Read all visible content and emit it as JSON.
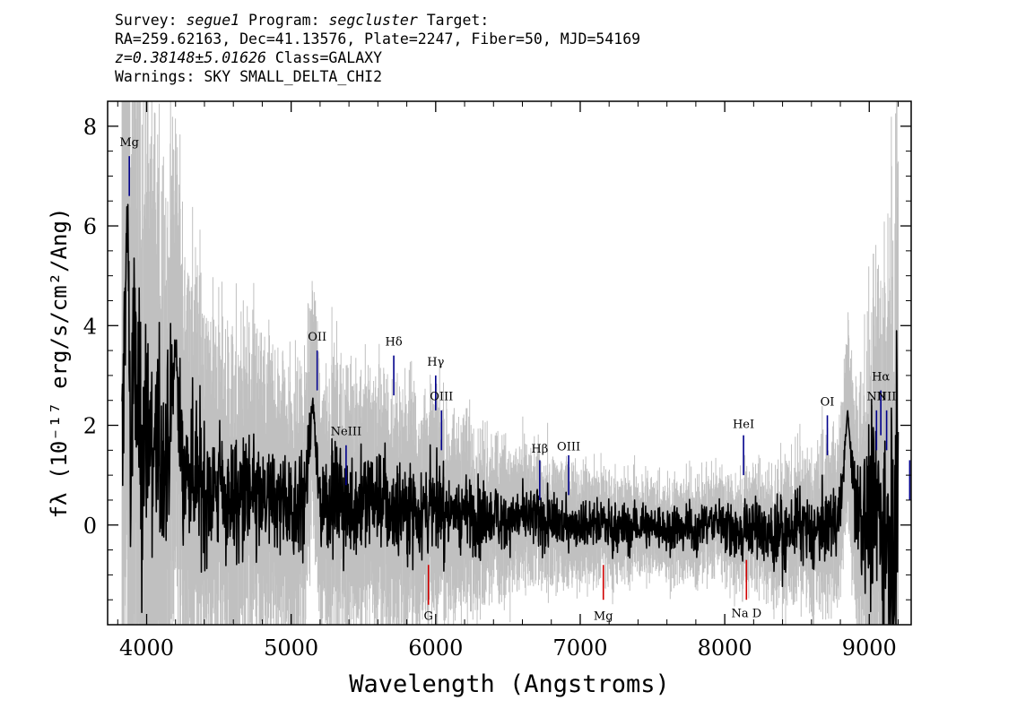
{
  "header": {
    "survey_label": "Survey:",
    "survey": "segue1",
    "program_label": "Program:",
    "program": "segcluster",
    "target_label": "Target:",
    "line2": "RA=259.62163, Dec=41.13576, Plate=2247, Fiber=50, MJD=54169",
    "redshift": "z=0.38148±5.01626",
    "class_text": "Class=GALAXY",
    "warnings": "Warnings: SKY SMALL_DELTA_CHI2"
  },
  "chart_data": {
    "type": "line",
    "xlabel": "Wavelength (Angstroms)",
    "ylabel": "fλ (10⁻¹⁷ erg/s/cm²/Ang)",
    "xlim": [
      3730,
      9290
    ],
    "ylim": [
      -2.0,
      8.5
    ],
    "x_ticks": [
      4000,
      5000,
      6000,
      7000,
      8000,
      9000
    ],
    "y_ticks": [
      0,
      2,
      4,
      6,
      8
    ],
    "grid": false,
    "legend": "none",
    "series": [
      {
        "role": "flux",
        "color": "#000000",
        "x": [
          3830,
          3850,
          3870,
          3890,
          3910,
          3930,
          3960,
          4000,
          4050,
          4100,
          4150,
          4200,
          4250,
          4300,
          4400,
          4500,
          4600,
          4700,
          4800,
          4900,
          5000,
          5100,
          5150,
          5200,
          5300,
          5400,
          5500,
          5600,
          5700,
          5800,
          5900,
          6000,
          6100,
          6200,
          6300,
          6400,
          6500,
          6600,
          6700,
          6800,
          6900,
          7000,
          7100,
          7200,
          7300,
          7400,
          7500,
          7600,
          7700,
          7800,
          7900,
          8000,
          8100,
          8200,
          8300,
          8400,
          8500,
          8600,
          8700,
          8800,
          8850,
          8900,
          9000,
          9050,
          9100,
          9150,
          9200
        ],
        "y": [
          0.5,
          4.5,
          6.3,
          1.0,
          3.5,
          2.5,
          1.5,
          2.0,
          1.6,
          1.2,
          1.4,
          3.6,
          1.0,
          1.2,
          0.8,
          0.7,
          0.5,
          0.6,
          0.4,
          0.5,
          0.4,
          0.5,
          2.5,
          0.4,
          0.6,
          0.3,
          0.5,
          0.6,
          0.3,
          0.4,
          0.3,
          0.4,
          0.2,
          0.3,
          0.1,
          0.2,
          0.1,
          0.2,
          0.1,
          0.0,
          0.1,
          0.0,
          0.1,
          0.0,
          -0.1,
          0.0,
          0.0,
          -0.1,
          0.0,
          -0.1,
          0.1,
          0.0,
          -0.2,
          0.0,
          -0.3,
          -0.2,
          0.0,
          -0.2,
          0.0,
          0.2,
          2.3,
          0.3,
          0.0,
          0.5,
          0.0,
          0.2,
          0.5
        ]
      },
      {
        "role": "error",
        "color": "#c0c0c0",
        "x": [
          3830,
          3900,
          4000,
          4100,
          4200,
          4400,
          4600,
          4800,
          5000,
          5200,
          5400,
          5600,
          5800,
          6000,
          6200,
          6400,
          6600,
          6800,
          7000,
          7200,
          7400,
          7600,
          7800,
          8000,
          8200,
          8400,
          8600,
          8800,
          8900,
          9000,
          9100,
          9200
        ],
        "y": [
          8.5,
          8.5,
          7.0,
          6.0,
          5.0,
          3.6,
          3.2,
          3.0,
          2.8,
          2.7,
          2.6,
          2.5,
          2.4,
          2.2,
          1.8,
          1.5,
          1.3,
          1.2,
          1.1,
          1.0,
          0.9,
          0.9,
          0.9,
          1.0,
          1.1,
          1.2,
          1.4,
          1.8,
          2.5,
          3.5,
          5.0,
          8.0
        ]
      }
    ],
    "line_markers": [
      {
        "label": "Mg",
        "x": 3880,
        "y0": 6.6,
        "y1": 7.4,
        "ly": 7.6,
        "color": "#00008b"
      },
      {
        "label": "OII",
        "x": 5180,
        "y0": 2.7,
        "y1": 3.5,
        "ly": 3.7,
        "color": "#00008b"
      },
      {
        "label": "NeIII",
        "x": 5380,
        "y0": 0.8,
        "y1": 1.6,
        "ly": 1.8,
        "color": "#00008b"
      },
      {
        "label": "Hδ",
        "x": 5710,
        "y0": 2.6,
        "y1": 3.4,
        "ly": 3.6,
        "color": "#00008b"
      },
      {
        "label": "Hγ",
        "x": 6000,
        "y0": 2.3,
        "y1": 3.0,
        "ly": 3.2,
        "color": "#00008b"
      },
      {
        "label": "OIII",
        "x": 6040,
        "y0": 1.5,
        "y1": 2.3,
        "ly": 2.5,
        "color": "#00008b"
      },
      {
        "label": "Hβ",
        "x": 6720,
        "y0": 0.5,
        "y1": 1.3,
        "ly": 1.45,
        "color": "#00008b"
      },
      {
        "label": "OIII",
        "x": 6920,
        "y0": 0.6,
        "y1": 1.4,
        "ly": 1.5,
        "color": "#00008b"
      },
      {
        "label": "HeI",
        "x": 8130,
        "y0": 1.0,
        "y1": 1.8,
        "ly": 1.95,
        "color": "#00008b"
      },
      {
        "label": "OI",
        "x": 8710,
        "y0": 1.4,
        "y1": 2.2,
        "ly": 2.4,
        "color": "#00008b"
      },
      {
        "label": "NII",
        "x": 9050,
        "y0": 1.5,
        "y1": 2.3,
        "ly": 2.5,
        "color": "#00008b"
      },
      {
        "label": "Hα",
        "x": 9080,
        "y0": 1.8,
        "y1": 2.7,
        "ly": 2.9,
        "color": "#00008b"
      },
      {
        "label": "NII",
        "x": 9120,
        "y0": 1.5,
        "y1": 2.3,
        "ly": 2.5,
        "color": "#00008b"
      },
      {
        "label": "",
        "x": 9280,
        "y0": 0.5,
        "y1": 1.3,
        "ly": 1.4,
        "color": "#00008b"
      },
      {
        "label": "G",
        "x": 5950,
        "y0": -1.6,
        "y1": -0.8,
        "ly": -1.9,
        "color": "#d00000"
      },
      {
        "label": "Mg",
        "x": 7160,
        "y0": -1.5,
        "y1": -0.8,
        "ly": -1.9,
        "color": "#d00000"
      },
      {
        "label": "Na D",
        "x": 8150,
        "y0": -1.5,
        "y1": -0.7,
        "ly": -1.85,
        "color": "#d00000"
      }
    ]
  }
}
